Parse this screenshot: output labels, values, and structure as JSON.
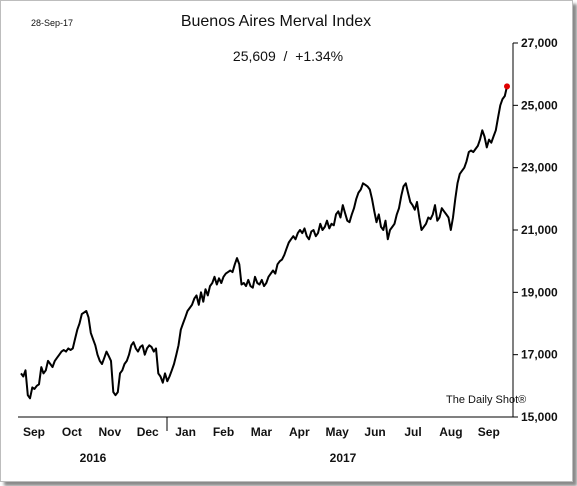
{
  "date_stamp": "28-Sep-17",
  "source_label": "The Daily Shot®",
  "chart_data": {
    "type": "line",
    "title": "Buenos Aires Merval Index",
    "subtitle": "25,609  /  +1.34%",
    "xlabel": "",
    "ylabel": "",
    "ylim": [
      15000,
      27000
    ],
    "yticks": [
      15000,
      17000,
      19000,
      21000,
      23000,
      25000,
      27000
    ],
    "ytick_labels": [
      "15,000",
      "17,000",
      "19,000",
      "21,000",
      "23,000",
      "25,000",
      "27,000"
    ],
    "y_axis_side": "right",
    "grid": false,
    "month_labels": [
      "Sep",
      "Oct",
      "Nov",
      "Dec",
      "Jan",
      "Feb",
      "Mar",
      "Apr",
      "May",
      "Jun",
      "Jul",
      "Aug",
      "Sep"
    ],
    "year_labels": [
      "2016",
      "2017"
    ],
    "line_color": "#000000",
    "last_point_color": "#e00000",
    "series": [
      {
        "values": [
          16400,
          16300,
          16500,
          15700,
          15600,
          15950,
          15900,
          16000,
          16050,
          16600,
          16400,
          16500,
          16800,
          16700,
          16600,
          16800,
          16900,
          17000,
          17100,
          17150,
          17100,
          17200,
          17150,
          17200,
          17500,
          17800,
          18000,
          18300,
          18350,
          18400,
          18200,
          17700,
          17500,
          17300,
          17000,
          16800,
          16700,
          16900,
          17100,
          16950,
          16800,
          15800,
          15700,
          15800,
          16400,
          16500,
          16700,
          16800,
          17000,
          17300,
          17400,
          17200,
          17100,
          17250,
          17300,
          17000,
          17200,
          17300,
          17250,
          17100,
          17200,
          16400,
          16300,
          16100,
          16400,
          16150,
          16300,
          16500,
          16700,
          17000,
          17300,
          17800,
          18000,
          18200,
          18400,
          18500,
          18600,
          18800,
          18900,
          18600,
          19000,
          18700,
          19100,
          18900,
          19200,
          19300,
          19500,
          19250,
          19450,
          19300,
          19500,
          19600,
          19650,
          19700,
          19650,
          19900,
          20100,
          19900,
          19250,
          19300,
          19200,
          19400,
          19200,
          19150,
          19500,
          19300,
          19250,
          19400,
          19200,
          19300,
          19500,
          19600,
          19700,
          19600,
          19900,
          20000,
          20050,
          20200,
          20400,
          20600,
          20700,
          20800,
          20700,
          20900,
          21000,
          20900,
          21050,
          20800,
          20700,
          20950,
          21000,
          20800,
          20900,
          21200,
          21000,
          21100,
          21300,
          21050,
          21200,
          21150,
          21500,
          21600,
          21400,
          21800,
          21550,
          21300,
          21250,
          21500,
          21700,
          22000,
          22200,
          22300,
          22500,
          22450,
          22400,
          22300,
          22000,
          21600,
          21250,
          21500,
          21100,
          21000,
          21300,
          20700,
          21000,
          21100,
          21200,
          21500,
          21700,
          22100,
          22400,
          22500,
          22200,
          21900,
          21800,
          21650,
          21900,
          21400,
          21000,
          21100,
          21200,
          21400,
          21350,
          21500,
          21800,
          21300,
          21400,
          21700,
          21600,
          21500,
          21400,
          21000,
          21400,
          22000,
          22500,
          22800,
          22900,
          23000,
          23200,
          23500,
          23550,
          23500,
          23600,
          23700,
          23900,
          24200,
          24000,
          23650,
          23900,
          23800,
          24000,
          24200,
          24600,
          25000,
          25200,
          25300,
          25609
        ]
      }
    ]
  }
}
